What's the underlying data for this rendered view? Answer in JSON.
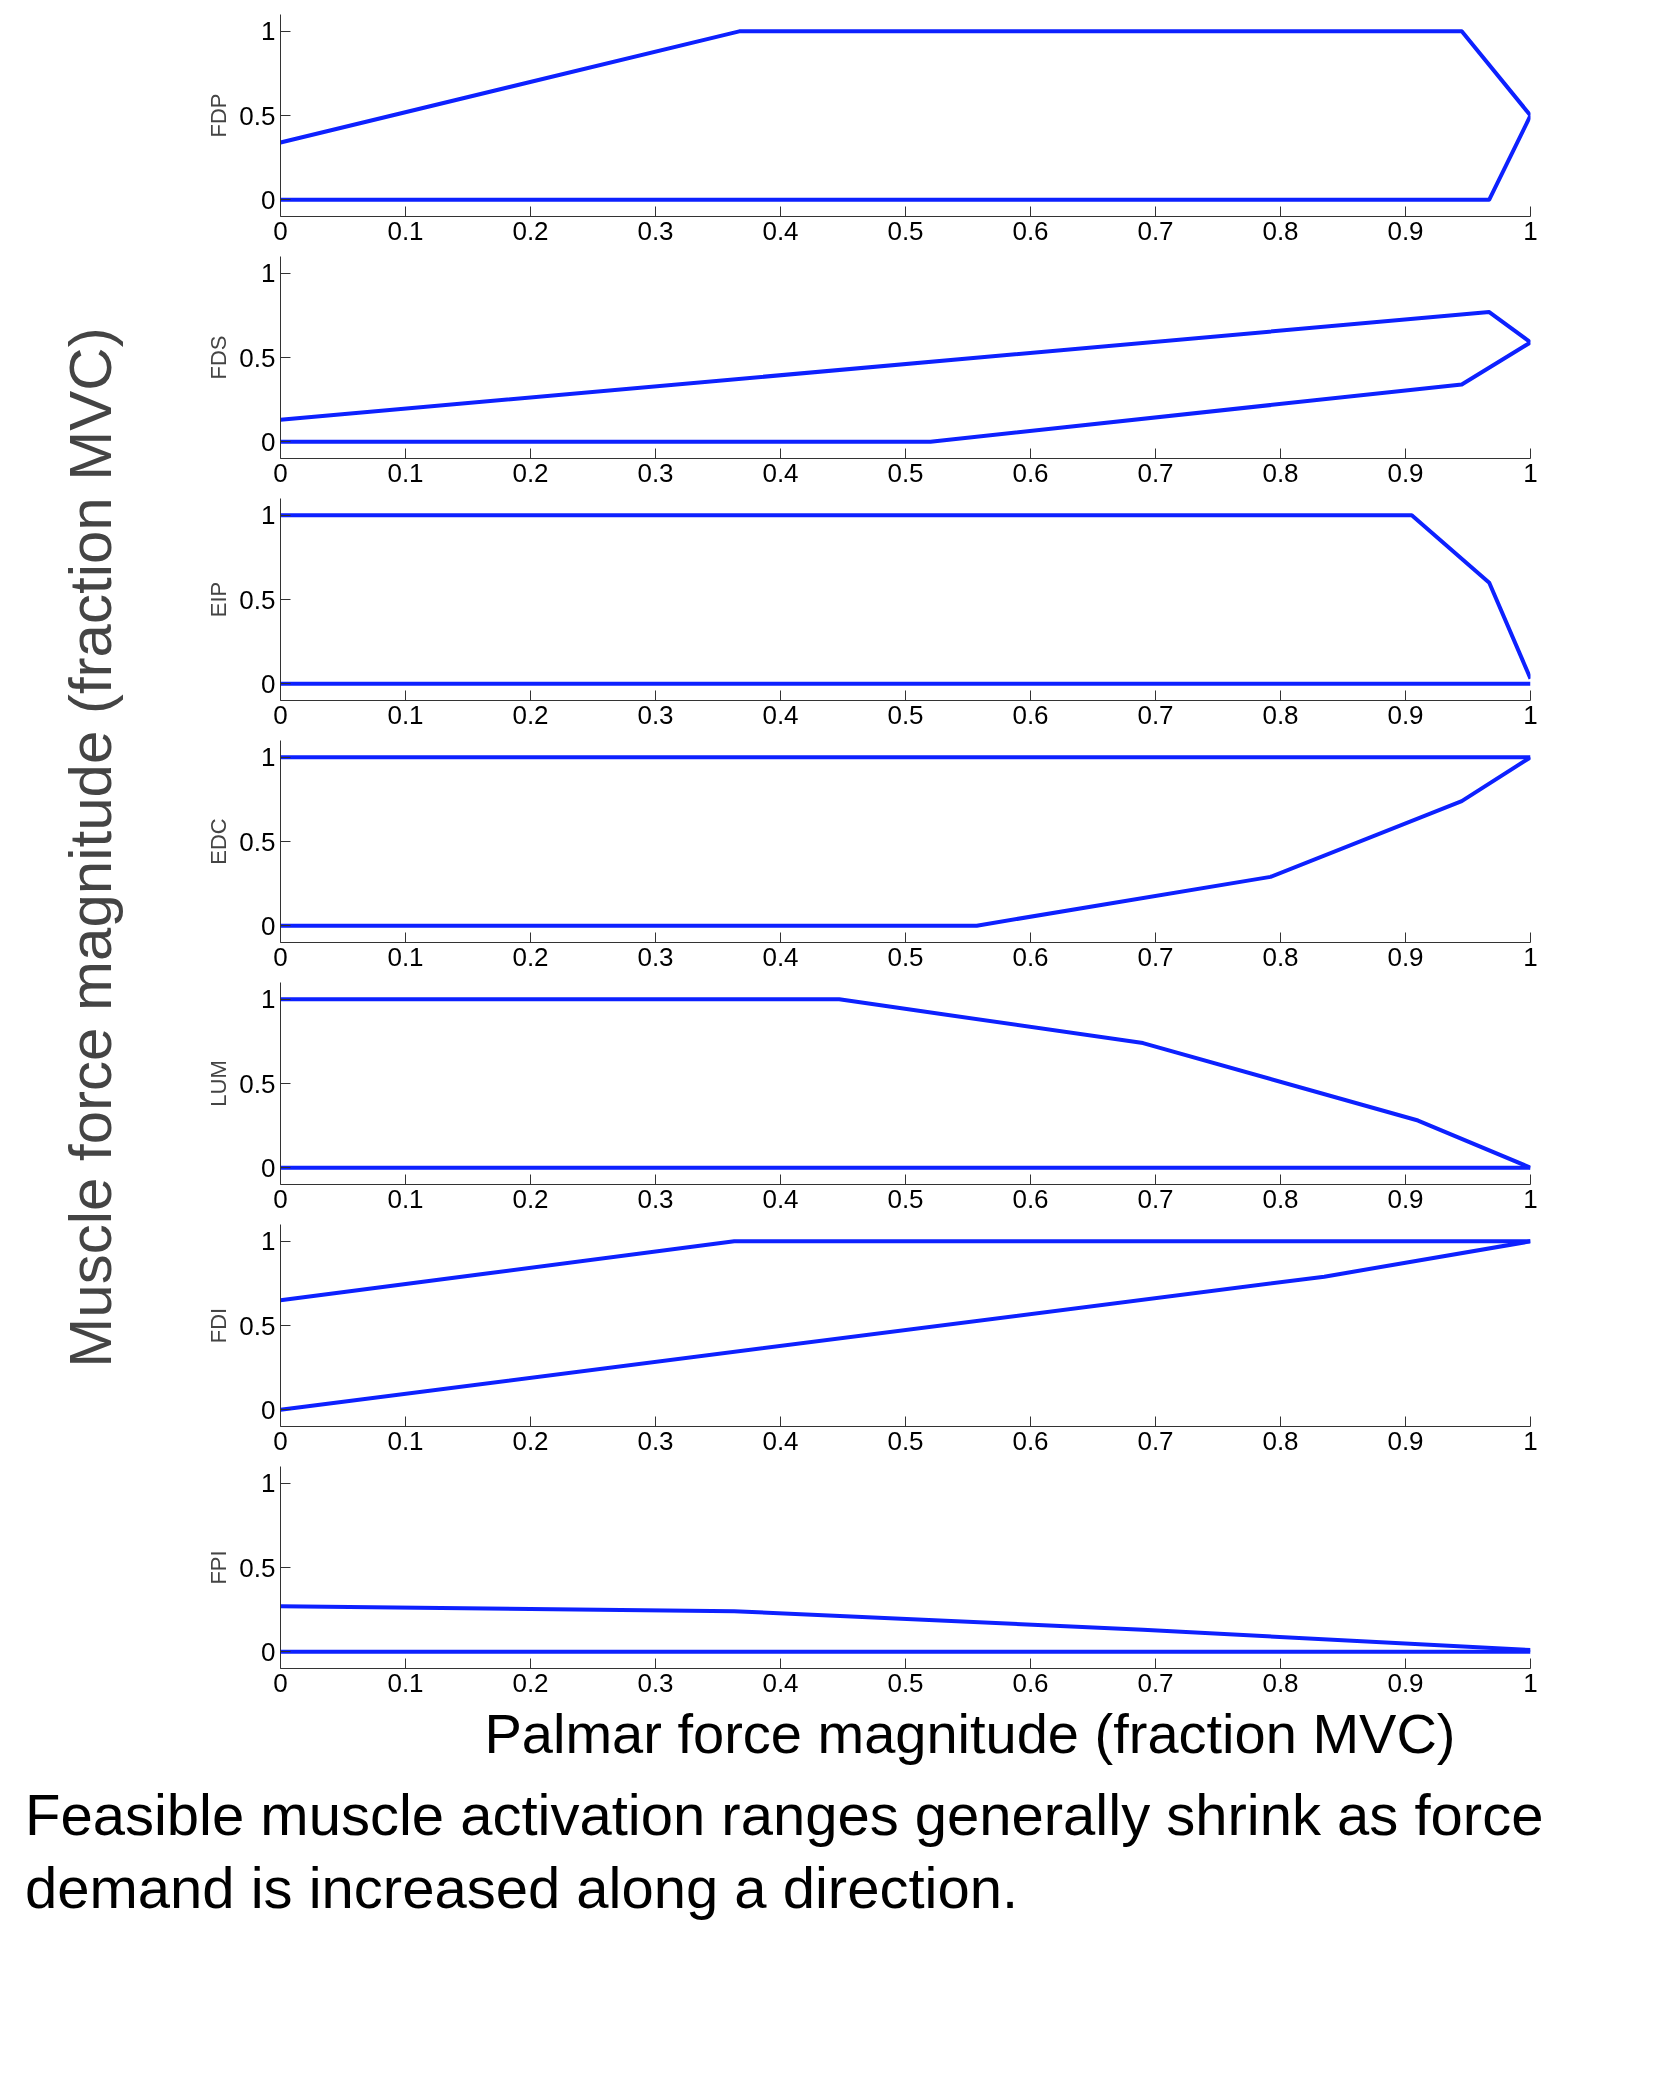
{
  "chart_data": [
    {
      "type": "line",
      "ylabel": "FDP",
      "xlim": [
        0,
        1
      ],
      "ylim": [
        -0.1,
        1.1
      ],
      "xticks": [
        0,
        0.1,
        0.2,
        0.3,
        0.4,
        0.5,
        0.6,
        0.7,
        0.8,
        0.9,
        1
      ],
      "yticks": [
        0,
        0.5,
        1
      ],
      "annotations": [
        "Muscle force magnitude (fraction MVC)"
      ],
      "series": [
        {
          "color": "#0d21ff",
          "x": [
            0,
            0.367,
            0.945,
            1
          ],
          "values": [
            0.34,
            1,
            1,
            0.5
          ]
        },
        {
          "color": "#0d21ff",
          "x": [
            0,
            0.967,
            1
          ],
          "values": [
            0,
            0,
            0.5
          ]
        }
      ]
    },
    {
      "type": "line",
      "ylabel": "FDS",
      "xlim": [
        0,
        1
      ],
      "ylim": [
        -0.1,
        1.1
      ],
      "xticks": [
        0,
        0.1,
        0.2,
        0.3,
        0.4,
        0.5,
        0.6,
        0.7,
        0.8,
        0.9,
        1
      ],
      "yticks": [
        0,
        0.5,
        1
      ],
      "series": [
        {
          "color": "#0d21ff",
          "x": [
            0,
            0.967,
            1
          ],
          "values": [
            0.13,
            0.77,
            0.59
          ]
        },
        {
          "color": "#0d21ff",
          "x": [
            0,
            0.52,
            0.945,
            1
          ],
          "values": [
            0,
            0,
            0.34,
            0.59
          ]
        }
      ]
    },
    {
      "type": "line",
      "ylabel": "EIP",
      "xlim": [
        0,
        1
      ],
      "ylim": [
        -0.1,
        1.1
      ],
      "xticks": [
        0,
        0.1,
        0.2,
        0.3,
        0.4,
        0.5,
        0.6,
        0.7,
        0.8,
        0.9,
        1
      ],
      "yticks": [
        0,
        0.5,
        1
      ],
      "series": [
        {
          "color": "#0d21ff",
          "x": [
            0,
            0.905,
            0.967,
            1
          ],
          "values": [
            1,
            1,
            0.6,
            0.03
          ]
        },
        {
          "color": "#0d21ff",
          "x": [
            0,
            1
          ],
          "values": [
            0,
            0
          ]
        }
      ]
    },
    {
      "type": "line",
      "ylabel": "EDC",
      "xlim": [
        0,
        1
      ],
      "ylim": [
        -0.1,
        1.1
      ],
      "xticks": [
        0,
        0.1,
        0.2,
        0.3,
        0.4,
        0.5,
        0.6,
        0.7,
        0.8,
        0.9,
        1
      ],
      "yticks": [
        0,
        0.5,
        1
      ],
      "series": [
        {
          "color": "#0d21ff",
          "x": [
            0,
            1
          ],
          "values": [
            1,
            1
          ]
        },
        {
          "color": "#0d21ff",
          "x": [
            0,
            0.557,
            0.792,
            0.945,
            1
          ],
          "values": [
            0,
            0,
            0.29,
            0.74,
            1
          ]
        }
      ]
    },
    {
      "type": "line",
      "ylabel": "LUM",
      "xlim": [
        0,
        1
      ],
      "ylim": [
        -0.1,
        1.1
      ],
      "xticks": [
        0,
        0.1,
        0.2,
        0.3,
        0.4,
        0.5,
        0.6,
        0.7,
        0.8,
        0.9,
        1
      ],
      "yticks": [
        0,
        0.5,
        1
      ],
      "series": [
        {
          "color": "#0d21ff",
          "x": [
            0,
            0.447,
            0.69,
            0.91,
            1
          ],
          "values": [
            1,
            1,
            0.74,
            0.28,
            0
          ]
        },
        {
          "color": "#0d21ff",
          "x": [
            0,
            1
          ],
          "values": [
            0,
            0
          ]
        }
      ]
    },
    {
      "type": "line",
      "ylabel": "FDI",
      "xlim": [
        0,
        1
      ],
      "ylim": [
        -0.1,
        1.1
      ],
      "xticks": [
        0,
        0.1,
        0.2,
        0.3,
        0.4,
        0.5,
        0.6,
        0.7,
        0.8,
        0.9,
        1
      ],
      "yticks": [
        0,
        0.5,
        1
      ],
      "series": [
        {
          "color": "#0d21ff",
          "x": [
            0,
            0.363,
            1
          ],
          "values": [
            0.65,
            1,
            1
          ]
        },
        {
          "color": "#0d21ff",
          "x": [
            0,
            0.835,
            1
          ],
          "values": [
            0,
            0.79,
            1
          ]
        }
      ]
    },
    {
      "type": "line",
      "ylabel": "FPI",
      "xlim": [
        0,
        1
      ],
      "ylim": [
        -0.1,
        1.1
      ],
      "xticks": [
        0,
        0.1,
        0.2,
        0.3,
        0.4,
        0.5,
        0.6,
        0.7,
        0.8,
        0.9,
        1
      ],
      "yticks": [
        0,
        0.5,
        1
      ],
      "xlabel": "Palmar force magnitude (fraction MVC)",
      "annotations": [
        "Feasible muscle activation ranges generally shrink as force demand is increased along a direction."
      ],
      "series": [
        {
          "color": "#0d21ff",
          "x": [
            0,
            0.363,
            0.69,
            1
          ],
          "values": [
            0.27,
            0.24,
            0.13,
            0.01
          ]
        },
        {
          "color": "#0d21ff",
          "x": [
            0,
            1
          ],
          "values": [
            0,
            0
          ]
        }
      ]
    }
  ]
}
